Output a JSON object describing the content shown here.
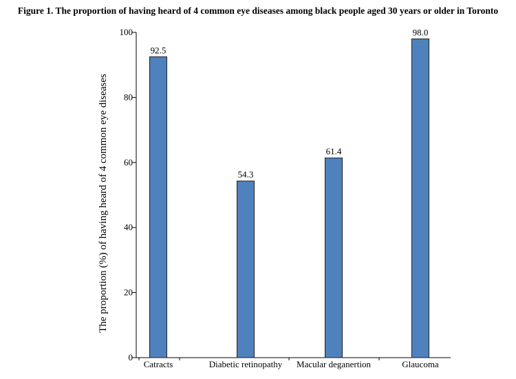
{
  "chart_data": {
    "type": "bar",
    "title": "Figure 1. The proportion of having heard of 4 common eye diseases among black people aged 30 years or older in Toronto",
    "xlabel": "",
    "ylabel": "The proportion (%) of having heard of 4 common eye diseases",
    "categories": [
      "Catracts",
      "Diabetic retinopathy",
      "Macular deganertion",
      "Glaucoma"
    ],
    "values": [
      92.5,
      54.3,
      61.4,
      98.0
    ],
    "value_labels": [
      "92.5",
      "54.3",
      "61.4",
      "98.0"
    ],
    "ylim": [
      0,
      100
    ],
    "yticks": [
      0,
      20,
      40,
      60,
      80,
      100
    ],
    "ytick_labels": [
      "0",
      "20",
      "40",
      "60",
      "80",
      "100"
    ],
    "grid": false,
    "bar_color": "#4f81bd"
  }
}
